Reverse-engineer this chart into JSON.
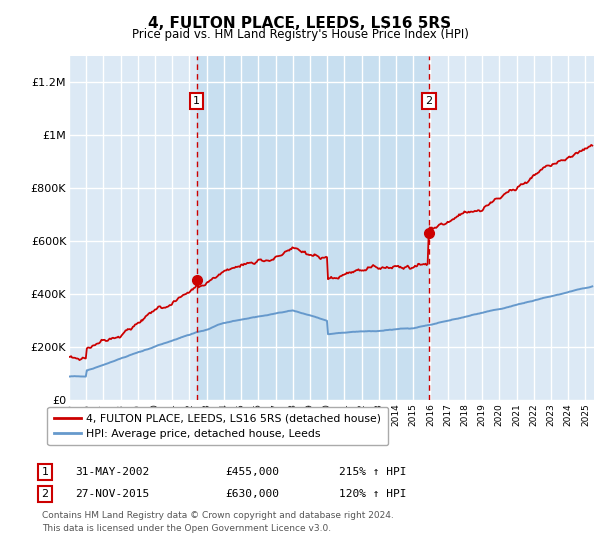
{
  "title": "4, FULTON PLACE, LEEDS, LS16 5RS",
  "subtitle": "Price paid vs. HM Land Registry's House Price Index (HPI)",
  "ylim": [
    0,
    1300000
  ],
  "yticks": [
    0,
    200000,
    400000,
    600000,
    800000,
    1000000,
    1200000
  ],
  "ytick_labels": [
    "£0",
    "£200K",
    "£400K",
    "£600K",
    "£800K",
    "£1M",
    "£1.2M"
  ],
  "plot_bg_color": "#dce9f5",
  "highlight_bg_color": "#c8dff0",
  "grid_color": "#ffffff",
  "sale1_date": 2002.42,
  "sale1_price": 455000,
  "sale1_label": "31-MAY-2002",
  "sale1_hpi_pct": "215%",
  "sale2_date": 2015.92,
  "sale2_price": 630000,
  "sale2_label": "27-NOV-2015",
  "sale2_hpi_pct": "120%",
  "legend_entry1": "4, FULTON PLACE, LEEDS, LS16 5RS (detached house)",
  "legend_entry2": "HPI: Average price, detached house, Leeds",
  "footnote_line1": "Contains HM Land Registry data © Crown copyright and database right 2024.",
  "footnote_line2": "This data is licensed under the Open Government Licence v3.0.",
  "red_color": "#cc0000",
  "blue_color": "#6699cc",
  "xmin": 1995,
  "xmax": 2025.5
}
